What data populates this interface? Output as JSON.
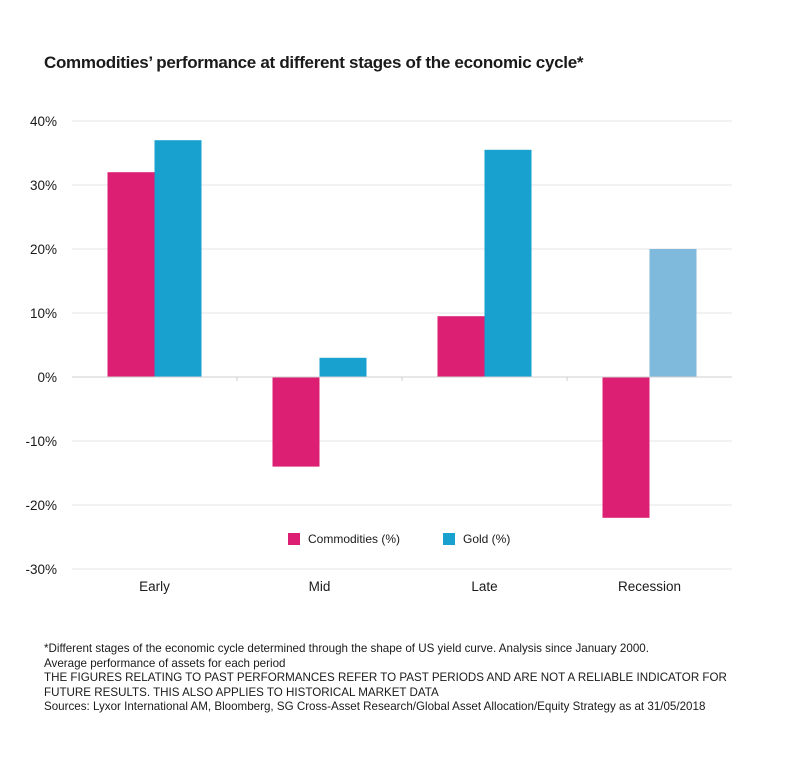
{
  "chart_data": {
    "type": "bar",
    "title": "Commodities’ performance at different stages of the economic cycle*",
    "categories": [
      "Early",
      "Mid",
      "Late",
      "Recession"
    ],
    "series": [
      {
        "name": "Commodities (%)",
        "color": "#dd1f74",
        "values": [
          32,
          -14,
          9.5,
          -22
        ]
      },
      {
        "name": "Gold (%)",
        "color": "#18a1cf",
        "values": [
          37,
          3,
          35.5,
          20
        ]
      }
    ],
    "highlight_color": "#7fbadc",
    "ylim": [
      -30,
      40
    ],
    "yticks": [
      40,
      30,
      20,
      10,
      0,
      -10,
      -20,
      -30
    ],
    "ytick_labels": [
      "40%",
      "30%",
      "20%",
      "10%",
      "0%",
      "-10%",
      "-20%",
      "-30%"
    ],
    "xlabel": "",
    "ylabel": "",
    "grid": true,
    "legend_position": "bottom-center"
  },
  "footnotes": [
    "*Different stages of the economic cycle determined through the shape of US yield curve. Analysis since January 2000.",
    "Average performance of assets for each period",
    "THE FIGURES RELATING TO PAST PERFORMANCES REFER TO PAST PERIODS AND ARE NOT A RELIABLE INDICATOR FOR",
    "FUTURE RESULTS. THIS ALSO APPLIES TO HISTORICAL MARKET DATA",
    "Sources: Lyxor International AM, Bloomberg, SG Cross-Asset Research/Global Asset Allocation/Equity Strategy as at 31/05/2018"
  ]
}
